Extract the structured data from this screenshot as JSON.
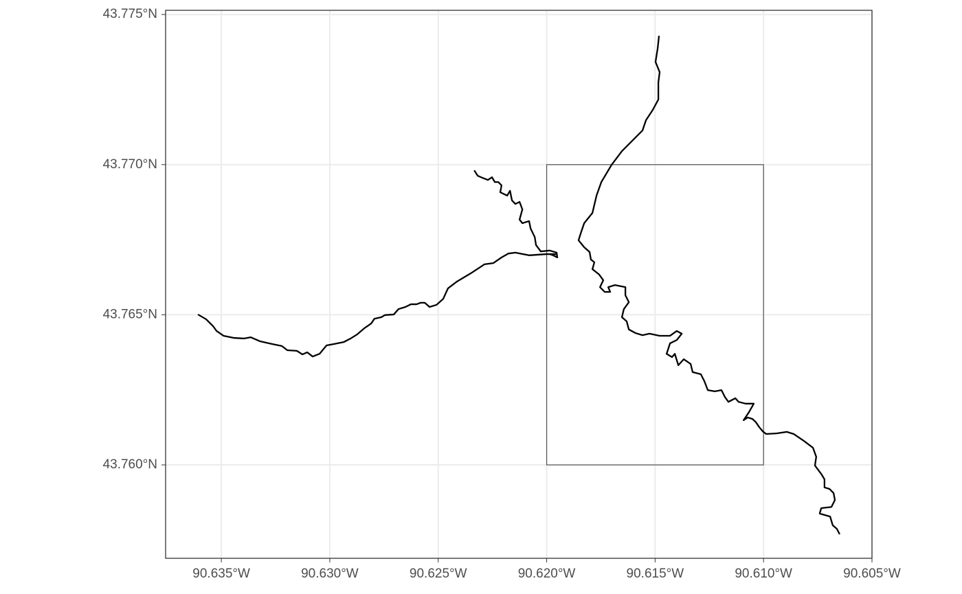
{
  "chart_data": {
    "type": "line",
    "xlim": [
      -90.63757,
      -90.605
    ],
    "ylim": [
      43.75689,
      43.77514
    ],
    "xticks": [
      {
        "value": -90.635,
        "label": "90.635°W"
      },
      {
        "value": -90.63,
        "label": "90.630°W"
      },
      {
        "value": -90.625,
        "label": "90.625°W"
      },
      {
        "value": -90.62,
        "label": "90.620°W"
      },
      {
        "value": -90.615,
        "label": "90.615°W"
      },
      {
        "value": -90.61,
        "label": "90.610°W"
      },
      {
        "value": -90.605,
        "label": "90.605°W"
      }
    ],
    "yticks": [
      {
        "value": 43.76,
        "label": "43.760°N"
      },
      {
        "value": 43.765,
        "label": "43.765°N"
      },
      {
        "value": 43.77,
        "label": "43.770°N"
      },
      {
        "value": 43.775,
        "label": "43.775°N"
      }
    ],
    "grid": true,
    "rect": {
      "xmin": -90.62,
      "xmax": -90.61,
      "ymin": 43.76,
      "ymax": 43.77,
      "color": "#555555"
    },
    "series": [
      {
        "color": "#000000",
        "x": [
          -90.63608,
          -90.6357,
          -90.63538,
          -90.63522,
          -90.6349,
          -90.63443,
          -90.63395,
          -90.63364,
          -90.63323,
          -90.63269,
          -90.63221,
          -90.63196,
          -90.63152,
          -90.63126,
          -90.63104,
          -90.63079,
          -90.63047,
          -90.63015,
          -90.62977,
          -90.62936,
          -90.62904,
          -90.62873,
          -90.62841,
          -90.62809,
          -90.62794,
          -90.62762,
          -90.62746,
          -90.62705,
          -90.62683,
          -90.62651,
          -90.62626,
          -90.626,
          -90.62581,
          -90.62562,
          -90.6254,
          -90.62508,
          -90.62477,
          -90.62455,
          -90.62413,
          -90.6235,
          -90.62287,
          -90.62246,
          -90.62208,
          -90.62176,
          -90.62144,
          -90.62081,
          -90.62002,
          -90.61954
        ],
        "y": [
          43.76501,
          43.76485,
          43.76462,
          43.76446,
          43.7643,
          43.76423,
          43.76421,
          43.76425,
          43.76412,
          43.76403,
          43.76396,
          43.76382,
          43.7638,
          43.76368,
          43.76375,
          43.76361,
          43.7637,
          43.76398,
          43.76403,
          43.76409,
          43.76421,
          43.76435,
          43.76455,
          43.76471,
          43.76487,
          43.76492,
          43.76499,
          43.76501,
          43.76519,
          43.76526,
          43.76535,
          43.76535,
          43.7654,
          43.7654,
          43.76526,
          43.76533,
          43.76553,
          43.76588,
          43.76611,
          43.76638,
          43.76668,
          43.76672,
          43.76691,
          43.76704,
          43.76707,
          43.76698,
          43.76702,
          43.76702
        ]
      },
      {
        "color": "#000000",
        "x": [
          -90.62334,
          -90.62318,
          -90.62296,
          -90.62271,
          -90.62252,
          -90.62239,
          -90.62223,
          -90.62208,
          -90.62214,
          -90.62182,
          -90.62169,
          -90.6216,
          -90.62144,
          -90.62125,
          -90.62112,
          -90.62125,
          -90.62112,
          -90.62081,
          -90.62074,
          -90.62055,
          -90.62049,
          -90.62027,
          -90.61986,
          -90.61954,
          -90.61951,
          -90.6197,
          -90.61986
        ],
        "y": [
          43.76981,
          43.76963,
          43.76956,
          43.76949,
          43.76958,
          43.76942,
          43.76942,
          43.76931,
          43.76908,
          43.76897,
          43.76913,
          43.76881,
          43.76869,
          43.76876,
          43.76851,
          43.76817,
          43.76805,
          43.76812,
          43.76787,
          43.76759,
          43.76732,
          43.76711,
          43.76714,
          43.76707,
          43.76691,
          43.76698,
          43.76702
        ]
      },
      {
        "color": "#000000",
        "x": [
          -90.61482,
          -90.61488,
          -90.61498,
          -90.61479,
          -90.61485,
          -90.61485,
          -90.61511,
          -90.61542,
          -90.61558,
          -90.61606,
          -90.61653,
          -90.61701,
          -90.61748,
          -90.6177,
          -90.61789,
          -90.61827,
          -90.61843,
          -90.61853,
          -90.61827,
          -90.61802,
          -90.61796,
          -90.6178,
          -90.61789,
          -90.61758,
          -90.61739,
          -90.61754,
          -90.61732,
          -90.61707,
          -90.61716,
          -90.61685,
          -90.61637,
          -90.61637,
          -90.61621,
          -90.61644,
          -90.61653,
          -90.61631,
          -90.61621,
          -90.6159,
          -90.61558,
          -90.61526,
          -90.61479,
          -90.61431,
          -90.614,
          -90.61377,
          -90.614,
          -90.61431,
          -90.61447,
          -90.61422,
          -90.61409,
          -90.61393,
          -90.61368,
          -90.61336,
          -90.61327,
          -90.61289,
          -90.61273,
          -90.61257,
          -90.61225,
          -90.61194,
          -90.61178,
          -90.61162,
          -90.6113,
          -90.61115,
          -90.61083,
          -90.61045,
          -90.61067,
          -90.61092,
          -90.61073,
          -90.61051,
          -90.61035,
          -90.6102,
          -90.61004,
          -90.60988,
          -90.6094,
          -90.60893,
          -90.60861,
          -90.60814,
          -90.60772,
          -90.60757,
          -90.60763,
          -90.60734,
          -90.60719,
          -90.60719,
          -90.60696,
          -90.60677,
          -90.60671,
          -90.60687,
          -90.60734,
          -90.60741,
          -90.60693,
          -90.60681,
          -90.60662,
          -90.60649
        ],
        "y": [
          43.77429,
          43.77388,
          43.77342,
          43.77308,
          43.77274,
          43.77217,
          43.77182,
          43.77148,
          43.77114,
          43.77079,
          43.77045,
          43.76999,
          43.76942,
          43.76897,
          43.76839,
          43.76805,
          43.76771,
          43.76748,
          43.76725,
          43.76709,
          43.76684,
          43.76675,
          43.76652,
          43.76634,
          43.76615,
          43.76592,
          43.76576,
          43.76576,
          43.76592,
          43.76599,
          43.76592,
          43.76565,
          43.76542,
          43.76519,
          43.76492,
          43.76478,
          43.76451,
          43.76439,
          43.76432,
          43.76437,
          43.7643,
          43.7643,
          43.76446,
          43.76437,
          43.76416,
          43.76405,
          43.7637,
          43.76359,
          43.7637,
          43.76332,
          43.76352,
          43.76336,
          43.76309,
          43.76302,
          43.76279,
          43.76249,
          43.76245,
          43.76249,
          43.76226,
          43.7621,
          43.76222,
          43.7621,
          43.76204,
          43.76204,
          43.76176,
          43.76149,
          43.76158,
          43.76153,
          43.76142,
          43.76126,
          43.76112,
          43.76103,
          43.76105,
          43.7611,
          43.76103,
          43.7608,
          43.76057,
          43.76027,
          43.75998,
          43.7597,
          43.75952,
          43.75925,
          43.7592,
          43.75906,
          43.75883,
          43.7586,
          43.75856,
          43.75838,
          43.75828,
          43.75799,
          43.75787,
          43.75769
        ]
      }
    ]
  }
}
